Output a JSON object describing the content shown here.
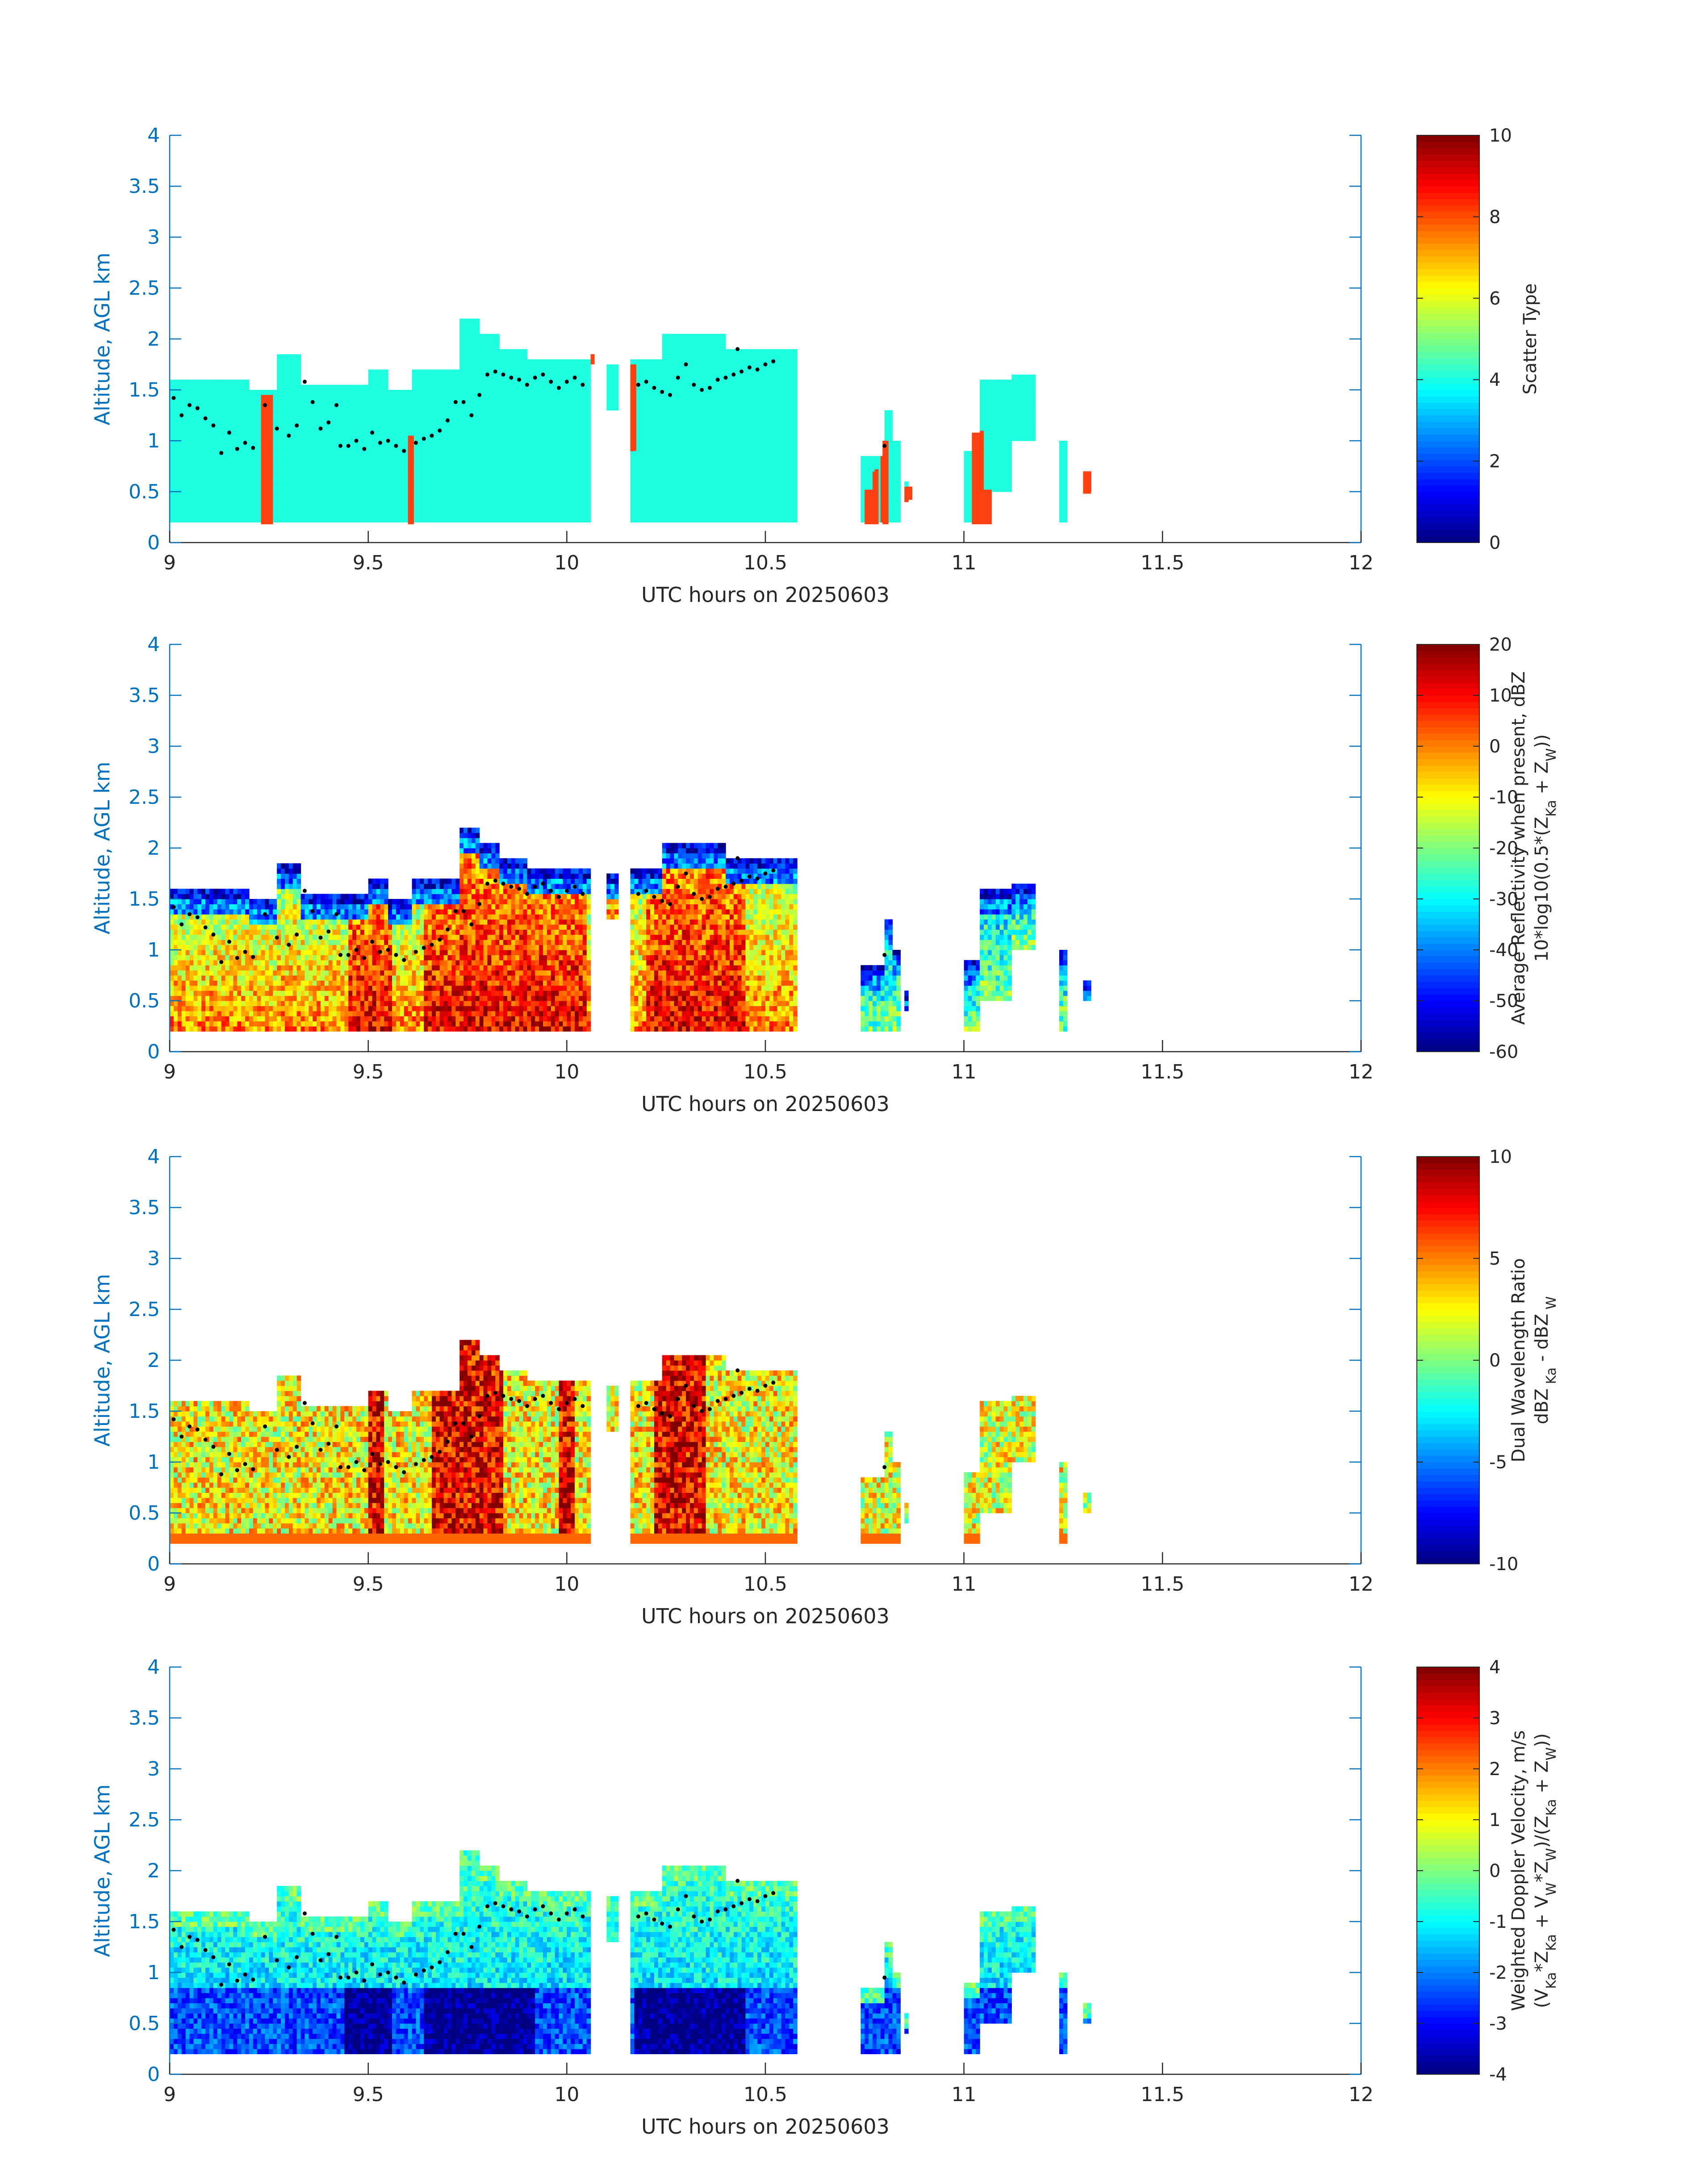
{
  "chart_data": [
    {
      "type": "heatmap",
      "xlabel": "UTC hours on 20250603",
      "ylabel": "Altitude, AGL km",
      "xlim": [
        9,
        12
      ],
      "ylim": [
        0,
        4
      ],
      "xticks": [
        "9",
        "9.5",
        "10",
        "10.5",
        "11",
        "11.5",
        "12"
      ],
      "yticks": [
        "0",
        "0.5",
        "1",
        "1.5",
        "2",
        "2.5",
        "3",
        "3.5",
        "4"
      ],
      "colorbar": {
        "label_lines": [
          "Scatter Type"
        ],
        "label_pieces": [
          [
            {
              "t": "Scatter Type",
              "s": ""
            }
          ]
        ],
        "clim": [
          0,
          10
        ],
        "ticks": [
          "0",
          "2",
          "4",
          "6",
          "8",
          "10"
        ],
        "colormap": "jet"
      },
      "field": "scatter_type",
      "colors": {
        "cloud": "#1effe0",
        "rain": "#ff4010"
      },
      "cloud_value": 3.9,
      "rain_value": 8.1,
      "rain_columns": [
        [
          9.23,
          9.26,
          0.18,
          1.45
        ],
        [
          9.6,
          9.615,
          0.18,
          1.05
        ],
        [
          10.06,
          10.07,
          1.75,
          1.85
        ],
        [
          10.16,
          10.175,
          0.9,
          1.75
        ],
        [
          10.75,
          10.775,
          0.18,
          0.52
        ],
        [
          10.775,
          10.785,
          0.18,
          0.72
        ],
        [
          10.795,
          10.81,
          0.18,
          1.0
        ],
        [
          10.855,
          10.87,
          0.42,
          0.55
        ],
        [
          11.02,
          11.05,
          0.18,
          1.08
        ],
        [
          11.05,
          11.07,
          0.18,
          0.52
        ],
        [
          11.3,
          11.32,
          0.48,
          0.7
        ]
      ]
    },
    {
      "type": "heatmap",
      "xlabel": "UTC hours on 20250603",
      "ylabel": "Altitude, AGL km",
      "xlim": [
        9,
        12
      ],
      "ylim": [
        0,
        4
      ],
      "xticks": [
        "9",
        "9.5",
        "10",
        "10.5",
        "11",
        "11.5",
        "12"
      ],
      "yticks": [
        "0",
        "0.5",
        "1",
        "1.5",
        "2",
        "2.5",
        "3",
        "3.5",
        "4"
      ],
      "colorbar": {
        "label_lines": [
          "Average Reflectivity when present, dBZ",
          "10*log10(0.5*(ZKa + ZW))"
        ],
        "label_pieces": [
          [
            {
              "t": "Average Reflectivity when present, dBZ",
              "s": ""
            }
          ],
          [
            {
              "t": "10*log10(0.5*(Z",
              "s": ""
            },
            {
              "t": "Ka",
              "s": "sub"
            },
            {
              "t": " + Z",
              "s": ""
            },
            {
              "t": "W",
              "s": "sub"
            },
            {
              "t": "))",
              "s": ""
            }
          ]
        ],
        "clim": [
          -60,
          20
        ],
        "ticks": [
          "-60",
          "-50",
          "-40",
          "-30",
          "-20",
          "-10",
          "0",
          "10",
          "20"
        ],
        "colormap": "jet"
      },
      "field": "reflectivity"
    },
    {
      "type": "heatmap",
      "xlabel": "UTC hours on 20250603",
      "ylabel": "Altitude, AGL km",
      "xlim": [
        9,
        12
      ],
      "ylim": [
        0,
        4
      ],
      "xticks": [
        "9",
        "9.5",
        "10",
        "10.5",
        "11",
        "11.5",
        "12"
      ],
      "yticks": [
        "0",
        "0.5",
        "1",
        "1.5",
        "2",
        "2.5",
        "3",
        "3.5",
        "4"
      ],
      "colorbar": {
        "label_lines": [
          "Dual Wavelength Ratio",
          "dBZ Ka - dBZ W"
        ],
        "label_pieces": [
          [
            {
              "t": "Dual Wavelength Ratio",
              "s": ""
            }
          ],
          [
            {
              "t": "dBZ",
              "s": ""
            },
            {
              "t": " Ka",
              "s": "sub"
            },
            {
              "t": " - dBZ",
              "s": ""
            },
            {
              "t": " W",
              "s": "sub"
            }
          ]
        ],
        "clim": [
          -10,
          10
        ],
        "ticks": [
          "-10",
          "-5",
          "0",
          "5",
          "10"
        ],
        "colormap": "jet"
      },
      "field": "dwr"
    },
    {
      "type": "heatmap",
      "xlabel": "UTC hours on 20250603",
      "ylabel": "Altitude, AGL km",
      "xlim": [
        9,
        12
      ],
      "ylim": [
        0,
        4
      ],
      "xticks": [
        "9",
        "9.5",
        "10",
        "10.5",
        "11",
        "11.5",
        "12"
      ],
      "yticks": [
        "0",
        "0.5",
        "1",
        "1.5",
        "2",
        "2.5",
        "3",
        "3.5",
        "4"
      ],
      "colorbar": {
        "label_lines": [
          "Weighted Doppler Velocity, m/s",
          "(VKa*ZKa + VW*ZW)/(ZKa + ZW))"
        ],
        "label_pieces": [
          [
            {
              "t": "Weighted Doppler Velocity, m/s",
              "s": ""
            }
          ],
          [
            {
              "t": "(V",
              "s": ""
            },
            {
              "t": "Ka",
              "s": "sub"
            },
            {
              "t": "*Z",
              "s": ""
            },
            {
              "t": "Ka",
              "s": "sub"
            },
            {
              "t": " + V",
              "s": ""
            },
            {
              "t": "W",
              "s": "sub"
            },
            {
              "t": "*Z",
              "s": ""
            },
            {
              "t": "W",
              "s": "sub"
            },
            {
              "t": ")/(Z",
              "s": ""
            },
            {
              "t": "Ka",
              "s": "sub"
            },
            {
              "t": " + Z",
              "s": ""
            },
            {
              "t": "W",
              "s": "sub"
            },
            {
              "t": "))",
              "s": ""
            }
          ]
        ],
        "clim": [
          -4,
          4
        ],
        "ticks": [
          "-4",
          "-3",
          "-2",
          "-1",
          "0",
          "1",
          "2",
          "3",
          "4"
        ],
        "colormap": "jet"
      },
      "field": "velocity"
    }
  ],
  "echo_segments": [
    {
      "x0": 9.0,
      "x1": 9.065,
      "bottom": 0.18,
      "top": 1.62
    },
    {
      "x0": 9.065,
      "x1": 9.2,
      "bottom": 0.18,
      "top": 1.6
    },
    {
      "x0": 9.2,
      "x1": 9.27,
      "bottom": 0.18,
      "top": 1.5
    },
    {
      "x0": 9.27,
      "x1": 9.33,
      "bottom": 0.18,
      "top": 1.85
    },
    {
      "x0": 9.33,
      "x1": 9.5,
      "bottom": 0.18,
      "top": 1.55
    },
    {
      "x0": 9.5,
      "x1": 9.555,
      "bottom": 0.18,
      "top": 1.7
    },
    {
      "x0": 9.555,
      "x1": 9.615,
      "bottom": 0.18,
      "top": 1.5
    },
    {
      "x0": 9.615,
      "x1": 9.73,
      "bottom": 0.18,
      "top": 1.7
    },
    {
      "x0": 9.73,
      "x1": 9.78,
      "bottom": 0.18,
      "top": 2.2
    },
    {
      "x0": 9.78,
      "x1": 9.83,
      "bottom": 0.18,
      "top": 2.05
    },
    {
      "x0": 9.83,
      "x1": 9.9,
      "bottom": 0.18,
      "top": 1.9
    },
    {
      "x0": 9.9,
      "x1": 10.065,
      "bottom": 0.18,
      "top": 1.82
    },
    {
      "x0": 10.1,
      "x1": 10.13,
      "bottom": 1.3,
      "top": 1.75
    },
    {
      "x0": 10.16,
      "x1": 10.24,
      "bottom": 0.18,
      "top": 1.8
    },
    {
      "x0": 10.24,
      "x1": 10.4,
      "bottom": 0.18,
      "top": 2.05
    },
    {
      "x0": 10.4,
      "x1": 10.58,
      "bottom": 0.18,
      "top": 1.9
    },
    {
      "x0": 10.74,
      "x1": 10.8,
      "bottom": 0.18,
      "top": 0.85
    },
    {
      "x0": 10.8,
      "x1": 10.825,
      "bottom": 0.18,
      "top": 1.3
    },
    {
      "x0": 10.825,
      "x1": 10.84,
      "bottom": 0.18,
      "top": 1.0
    },
    {
      "x0": 10.85,
      "x1": 10.865,
      "bottom": 0.4,
      "top": 0.6
    },
    {
      "x0": 11.0,
      "x1": 11.04,
      "bottom": 0.18,
      "top": 0.9
    },
    {
      "x0": 11.04,
      "x1": 11.12,
      "bottom": 0.5,
      "top": 1.6
    },
    {
      "x0": 11.12,
      "x1": 11.18,
      "bottom": 1.0,
      "top": 1.65
    },
    {
      "x0": 11.245,
      "x1": 11.26,
      "bottom": 0.18,
      "top": 1.0
    },
    {
      "x0": 11.3,
      "x1": 11.325,
      "bottom": 0.5,
      "top": 0.7
    }
  ],
  "cloud_top_markers": [
    {
      "x": 9.01,
      "y": 1.42
    },
    {
      "x": 9.03,
      "y": 1.25
    },
    {
      "x": 9.05,
      "y": 1.35
    },
    {
      "x": 9.07,
      "y": 1.32
    },
    {
      "x": 9.09,
      "y": 1.22
    },
    {
      "x": 9.11,
      "y": 1.15
    },
    {
      "x": 9.13,
      "y": 0.88
    },
    {
      "x": 9.15,
      "y": 1.08
    },
    {
      "x": 9.17,
      "y": 0.92
    },
    {
      "x": 9.19,
      "y": 0.98
    },
    {
      "x": 9.21,
      "y": 0.93
    },
    {
      "x": 9.24,
      "y": 1.35
    },
    {
      "x": 9.27,
      "y": 1.12
    },
    {
      "x": 9.3,
      "y": 1.05
    },
    {
      "x": 9.32,
      "y": 1.15
    },
    {
      "x": 9.34,
      "y": 1.58
    },
    {
      "x": 9.36,
      "y": 1.38
    },
    {
      "x": 9.38,
      "y": 1.12
    },
    {
      "x": 9.4,
      "y": 1.18
    },
    {
      "x": 9.42,
      "y": 1.35
    },
    {
      "x": 9.43,
      "y": 0.95
    },
    {
      "x": 9.45,
      "y": 0.95
    },
    {
      "x": 9.47,
      "y": 1.0
    },
    {
      "x": 9.49,
      "y": 0.92
    },
    {
      "x": 9.51,
      "y": 1.08
    },
    {
      "x": 9.53,
      "y": 0.98
    },
    {
      "x": 9.55,
      "y": 1.0
    },
    {
      "x": 9.57,
      "y": 0.95
    },
    {
      "x": 9.59,
      "y": 0.9
    },
    {
      "x": 9.62,
      "y": 0.98
    },
    {
      "x": 9.64,
      "y": 1.02
    },
    {
      "x": 9.66,
      "y": 1.05
    },
    {
      "x": 9.68,
      "y": 1.1
    },
    {
      "x": 9.7,
      "y": 1.2
    },
    {
      "x": 9.72,
      "y": 1.38
    },
    {
      "x": 9.74,
      "y": 1.38
    },
    {
      "x": 9.76,
      "y": 1.25
    },
    {
      "x": 9.78,
      "y": 1.45
    },
    {
      "x": 9.8,
      "y": 1.65
    },
    {
      "x": 9.82,
      "y": 1.68
    },
    {
      "x": 9.84,
      "y": 1.65
    },
    {
      "x": 9.86,
      "y": 1.62
    },
    {
      "x": 9.88,
      "y": 1.6
    },
    {
      "x": 9.9,
      "y": 1.55
    },
    {
      "x": 9.92,
      "y": 1.62
    },
    {
      "x": 9.94,
      "y": 1.65
    },
    {
      "x": 9.96,
      "y": 1.58
    },
    {
      "x": 9.98,
      "y": 1.52
    },
    {
      "x": 10.0,
      "y": 1.58
    },
    {
      "x": 10.02,
      "y": 1.62
    },
    {
      "x": 10.04,
      "y": 1.55
    },
    {
      "x": 10.18,
      "y": 1.55
    },
    {
      "x": 10.2,
      "y": 1.58
    },
    {
      "x": 10.22,
      "y": 1.52
    },
    {
      "x": 10.24,
      "y": 1.48
    },
    {
      "x": 10.26,
      "y": 1.45
    },
    {
      "x": 10.28,
      "y": 1.62
    },
    {
      "x": 10.3,
      "y": 1.75
    },
    {
      "x": 10.32,
      "y": 1.55
    },
    {
      "x": 10.34,
      "y": 1.5
    },
    {
      "x": 10.36,
      "y": 1.52
    },
    {
      "x": 10.38,
      "y": 1.6
    },
    {
      "x": 10.4,
      "y": 1.62
    },
    {
      "x": 10.42,
      "y": 1.65
    },
    {
      "x": 10.44,
      "y": 1.68
    },
    {
      "x": 10.46,
      "y": 1.72
    },
    {
      "x": 10.48,
      "y": 1.7
    },
    {
      "x": 10.5,
      "y": 1.75
    },
    {
      "x": 10.52,
      "y": 1.78
    },
    {
      "x": 10.43,
      "y": 1.9
    },
    {
      "x": 10.8,
      "y": 0.95
    }
  ]
}
